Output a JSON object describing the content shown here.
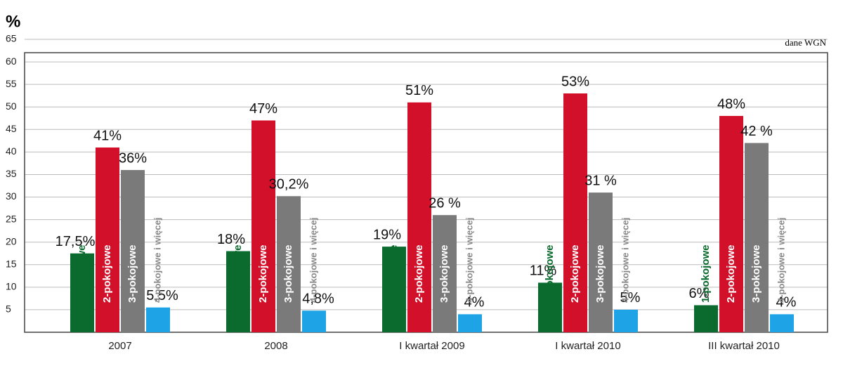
{
  "chart_data": {
    "type": "bar",
    "y_label": "%",
    "source": "dane WGN",
    "categories": [
      "2007",
      "2008",
      "I kwartał 2009",
      "I kwartał 2010",
      "III kwartał 2010"
    ],
    "series": [
      {
        "name": "1-pokojowe",
        "color": "#0b6b2e",
        "values": [
          17.5,
          18,
          19,
          11,
          6
        ],
        "value_labels": [
          "17,5%",
          "18%",
          "19%",
          "11%",
          "6%"
        ]
      },
      {
        "name": "2-pokojowe",
        "color": "#d3102a",
        "values": [
          41,
          47,
          51,
          53,
          48
        ],
        "value_labels": [
          "41%",
          "47%",
          "51%",
          "53%",
          "48%"
        ]
      },
      {
        "name": "3-pokojowe",
        "color": "#7a7a7a",
        "values": [
          36,
          30.2,
          26,
          31,
          42
        ],
        "value_labels": [
          "36%",
          "30,2%",
          "26 %",
          "31 %",
          "42 %"
        ]
      },
      {
        "name": "4-pokojowe i więcej",
        "color": "#1ea3e6",
        "values": [
          5.5,
          4.8,
          4,
          5,
          4
        ],
        "value_labels": [
          "5,5%",
          "4,8%",
          "4%",
          "5%",
          "4%"
        ]
      }
    ],
    "ylim": [
      0,
      65
    ],
    "yticks": [
      5,
      10,
      15,
      20,
      25,
      30,
      35,
      40,
      45,
      50,
      55,
      60,
      65
    ],
    "grid": true
  }
}
